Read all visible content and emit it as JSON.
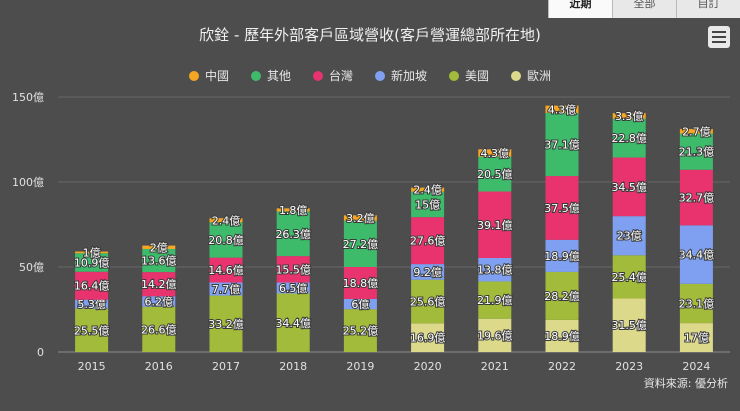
{
  "tabs": [
    {
      "label": "近期",
      "active": true
    },
    {
      "label": "全部",
      "active": false
    },
    {
      "label": "自訂",
      "active": false
    }
  ],
  "menu_icon": "hamburger-menu-icon",
  "source_label": "資料來源: 優分析",
  "chart_data": {
    "type": "bar",
    "stacked": true,
    "title": "欣銓 - 歷年外部客戶區域營收(客戶營運總部所在地)",
    "categories": [
      "2015",
      "2016",
      "2017",
      "2018",
      "2019",
      "2020",
      "2021",
      "2022",
      "2023",
      "2024"
    ],
    "y_ticks": [
      "0",
      "50億",
      "100億",
      "150億"
    ],
    "ylim": [
      0,
      150
    ],
    "unit_suffix": "億",
    "grid": true,
    "legend_position": "top",
    "legend_order": [
      "中國",
      "其他",
      "台灣",
      "新加坡",
      "美國",
      "歐洲"
    ],
    "series": [
      {
        "name": "歐洲",
        "color": "#dcd98a",
        "values": [
          0,
          0,
          0,
          0,
          0,
          16.9,
          19.6,
          18.9,
          31.5,
          17
        ]
      },
      {
        "name": "美國",
        "color": "#a3bb3a",
        "values": [
          25.5,
          26.6,
          33.2,
          34.4,
          25.2,
          25.6,
          21.9,
          28.2,
          25.4,
          23.1
        ]
      },
      {
        "name": "新加坡",
        "color": "#7fa0f0",
        "values": [
          5.3,
          6.2,
          7.7,
          6.5,
          6,
          9.2,
          13.8,
          18.9,
          23,
          34.4
        ]
      },
      {
        "name": "台灣",
        "color": "#e8336e",
        "values": [
          16.4,
          14.2,
          14.6,
          15.5,
          18.8,
          27.6,
          39.1,
          37.5,
          34.5,
          32.7
        ]
      },
      {
        "name": "其他",
        "color": "#3dbb6a",
        "values": [
          10.9,
          13.6,
          20.8,
          26.3,
          27.2,
          15,
          20.5,
          37.1,
          22.8,
          21.3
        ]
      },
      {
        "name": "中國",
        "color": "#f5a623",
        "values": [
          1,
          2,
          2.4,
          1.8,
          3.2,
          2.4,
          4.3,
          4.3,
          3.3,
          2.7
        ]
      }
    ]
  }
}
